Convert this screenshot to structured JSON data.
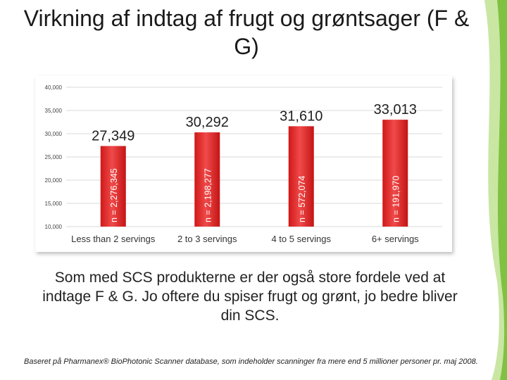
{
  "slide": {
    "title": "Virkning af indtag af frugt og grøntsager (F & G)",
    "body": "Som med SCS produkterne er der også store fordele ved at indtage F & G.  Jo oftere du spiser frugt og grønt, jo bedre bliver din SCS.",
    "footnote": "Baseret på Pharmanex® BioPhotonic Scanner database, som indeholder scanninger fra mere end 5 millioner personer pr. maj 2008."
  },
  "colors": {
    "bar_top": "#f04a4a",
    "bar_bottom": "#d01818",
    "grid": "#d9d9d9",
    "accent_green": "#7fc241",
    "accent_light_green": "#c9e6a3"
  },
  "chart_data": {
    "type": "bar",
    "categories": [
      "Less than 2 servings",
      "2 to 3 servings",
      "4 to 5 servings",
      "6+ servings"
    ],
    "values": [
      27349,
      30292,
      31610,
      33013
    ],
    "value_labels": [
      "27,349",
      "30,292",
      "31,610",
      "33,013"
    ],
    "bar_annotations": [
      "n = 2,276,345",
      "n = 2,198,277",
      "n = 572,074",
      "n = 191,970"
    ],
    "ylim": [
      10000,
      40000
    ],
    "yticks": [
      10000,
      15000,
      20000,
      25000,
      30000,
      35000,
      40000
    ],
    "ytick_labels": [
      "10,000",
      "15,000",
      "20,000",
      "25,000",
      "30,000",
      "35,000",
      "40,000"
    ],
    "grid": true,
    "title": "",
    "xlabel": "",
    "ylabel": ""
  }
}
